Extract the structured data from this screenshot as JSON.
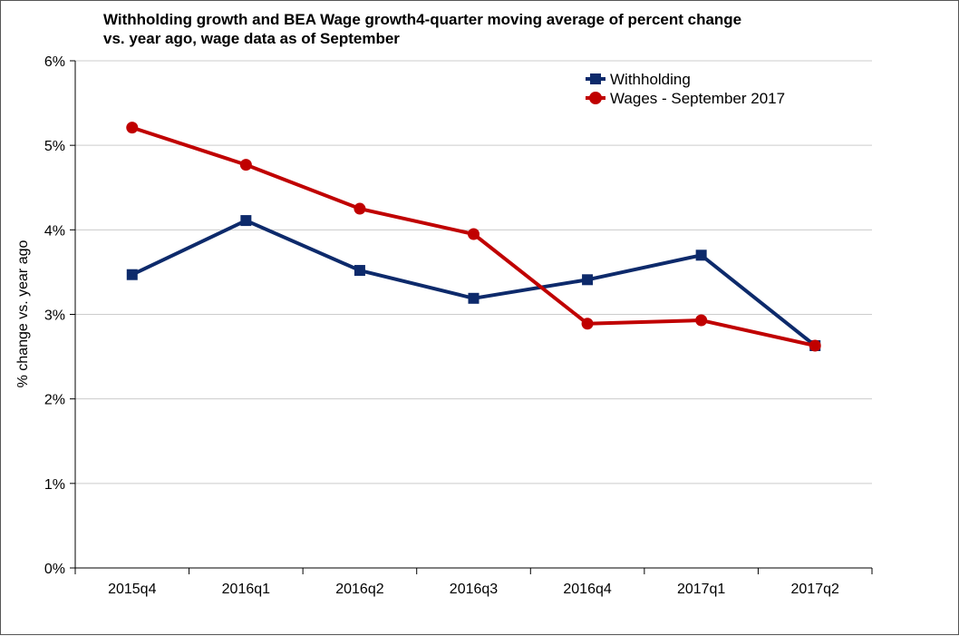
{
  "chart_data": {
    "type": "line",
    "title_lines": [
      "Withholding growth and BEA Wage growth4-quarter moving average of percent change",
      "vs. year ago, wage data as of September"
    ],
    "ylabel": "% change vs. year ago",
    "xlabel": "",
    "categories": [
      "2015q4",
      "2016q1",
      "2016q2",
      "2016q3",
      "2016q4",
      "2017q1",
      "2017q2"
    ],
    "ylim": [
      0,
      6
    ],
    "yticks": [
      0,
      1,
      2,
      3,
      4,
      5,
      6
    ],
    "ytick_labels": [
      "0%",
      "1%",
      "2%",
      "3%",
      "4%",
      "5%",
      "6%"
    ],
    "grid": true,
    "legend_position": "top-right",
    "series": [
      {
        "name": "Withholding",
        "color": "#0d2a6b",
        "marker": "square",
        "values": [
          3.47,
          4.11,
          3.52,
          3.19,
          3.41,
          3.7,
          2.63
        ]
      },
      {
        "name": "Wages - September 2017",
        "color": "#c00000",
        "marker": "circle",
        "values": [
          5.21,
          4.77,
          4.25,
          3.95,
          2.89,
          2.93,
          2.63
        ]
      }
    ]
  }
}
